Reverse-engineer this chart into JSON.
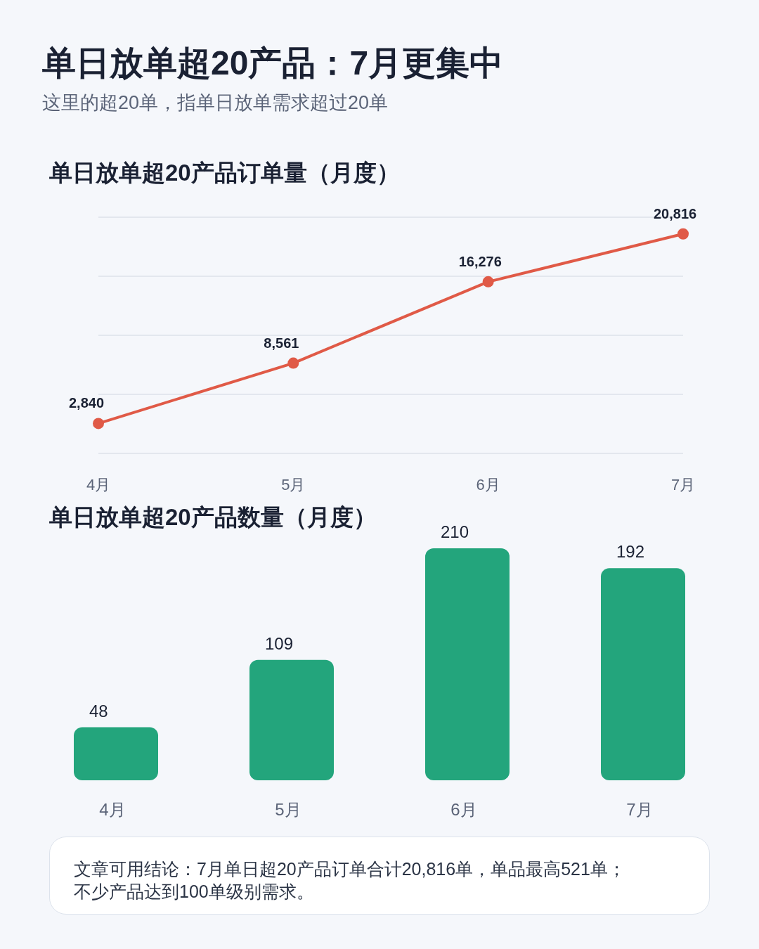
{
  "chart_data": [
    {
      "type": "other",
      "title": "单日放单超20产品：7月更集中",
      "subtitle": "这里的超20单，指单日放单需求超过20单"
    },
    {
      "type": "line",
      "title": "单日放单超20产品订单量（月度）",
      "categories": [
        "4月",
        "5月",
        "6月",
        "7月"
      ],
      "values": [
        2840,
        8561,
        16276,
        20816
      ],
      "value_labels": [
        "2,840",
        "8,561",
        "16,276",
        "20,816"
      ],
      "color": "#e05a47",
      "ylim": [
        0,
        22400
      ],
      "yticks": [
        {
          "value": 0,
          "label": null
        },
        {
          "value": 5600,
          "label": null
        },
        {
          "value": 11200,
          "label": null
        },
        {
          "value": 16800,
          "label": null
        },
        {
          "value": 22400,
          "label": null
        }
      ],
      "tick_labels": "x",
      "grid": "y",
      "marker": "circle",
      "line_style": "solid"
    },
    {
      "type": "bar",
      "title": "单日放单超20产品数量（月度）",
      "categories": [
        "4月",
        "5月",
        "6月",
        "7月"
      ],
      "values": [
        48,
        109,
        210,
        192
      ],
      "color": "#23a57c",
      "ylim": [
        0,
        210
      ],
      "data_labels": true,
      "tick_labels": "x"
    },
    {
      "type": "other",
      "annotations": [
        "文章可用结论：7月单日超20产品订单合计20,816单，单品最高521单；不少产品达到100单级别需求。"
      ]
    }
  ]
}
